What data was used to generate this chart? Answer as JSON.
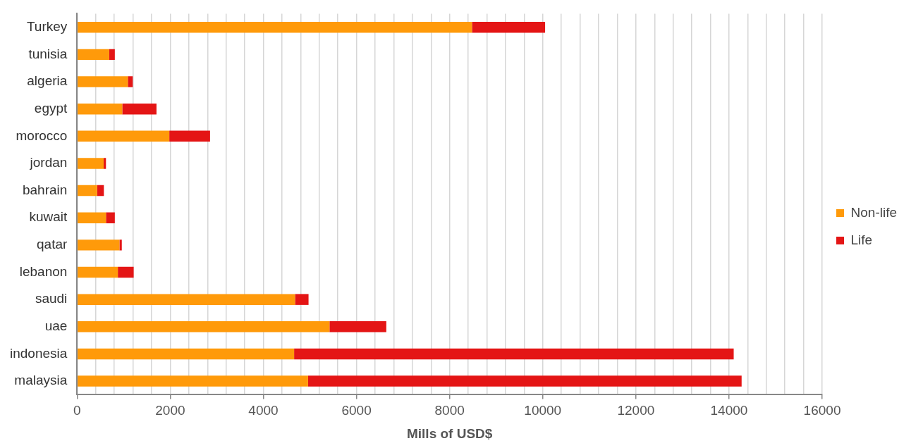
{
  "chart_data": {
    "type": "bar",
    "orientation": "horizontal",
    "stacked": true,
    "categories": [
      "Turkey",
      "tunisia",
      "algeria",
      "egypt",
      "morocco",
      "jordan",
      "bahrain",
      "kuwait",
      "qatar",
      "lebanon",
      "saudi",
      "uae",
      "indonesia",
      "malaysia"
    ],
    "series": [
      {
        "name": "Non-life",
        "color": "#ff9a0a",
        "values": [
          8480,
          690,
          1090,
          970,
          1980,
          570,
          430,
          620,
          910,
          875,
          4680,
          5420,
          4660,
          4960
        ]
      },
      {
        "name": "Life",
        "color": "#e41515",
        "values": [
          1570,
          120,
          105,
          735,
          875,
          50,
          145,
          190,
          50,
          340,
          290,
          1220,
          9440,
          9310
        ]
      }
    ],
    "xlabel": "Mills of USD$",
    "xlim": [
      0,
      16000
    ],
    "xticks": [
      0,
      {
        "value": 400,
        "label": null
      },
      {
        "value": 800,
        "label": null
      },
      {
        "value": 1200,
        "label": null
      },
      {
        "value": 1600,
        "label": null
      },
      2000,
      {
        "value": 2400,
        "label": null
      },
      {
        "value": 2800,
        "label": null
      },
      {
        "value": 3200,
        "label": null
      },
      {
        "value": 3600,
        "label": null
      },
      4000,
      {
        "value": 4400,
        "label": null
      },
      {
        "value": 4800,
        "label": null
      },
      {
        "value": 5200,
        "label": null
      },
      {
        "value": 5600,
        "label": null
      },
      6000,
      {
        "value": 6400,
        "label": null
      },
      {
        "value": 6800,
        "label": null
      },
      {
        "value": 7200,
        "label": null
      },
      {
        "value": 7600,
        "label": null
      },
      8000,
      {
        "value": 8400,
        "label": null
      },
      {
        "value": 8800,
        "label": null
      },
      {
        "value": 9200,
        "label": null
      },
      {
        "value": 9600,
        "label": null
      },
      10000,
      {
        "value": 10400,
        "label": null
      },
      {
        "value": 10800,
        "label": null
      },
      {
        "value": 11200,
        "label": null
      },
      {
        "value": 11600,
        "label": null
      },
      12000,
      {
        "value": 12400,
        "label": null
      },
      {
        "value": 12800,
        "label": null
      },
      {
        "value": 13200,
        "label": null
      },
      {
        "value": 13600,
        "label": null
      },
      14000,
      {
        "value": 14400,
        "label": null
      },
      {
        "value": 14800,
        "label": null
      },
      {
        "value": 15200,
        "label": null
      },
      {
        "value": 15600,
        "label": null
      },
      16000
    ],
    "grid": "x",
    "legend": "right"
  }
}
